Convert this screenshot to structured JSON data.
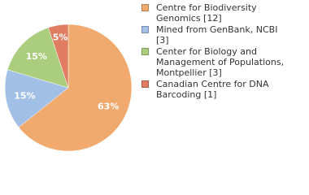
{
  "chart_data": {
    "type": "pie",
    "categories": [
      "Centre for Biodiversity Genomics [12]",
      "Mined from GenBank, NCBI [3]",
      "Center for Biology and Management of Populations, Montpellier [3]",
      "Canadian Centre for DNA Barcoding [1]"
    ],
    "values": [
      63,
      15,
      15,
      5
    ],
    "value_labels": [
      "63%",
      "15%",
      "15%",
      "5%"
    ],
    "colors": [
      "#f0aa6e",
      "#a2bfe5",
      "#abcd7e",
      "#e07c62"
    ],
    "legend": "right"
  }
}
